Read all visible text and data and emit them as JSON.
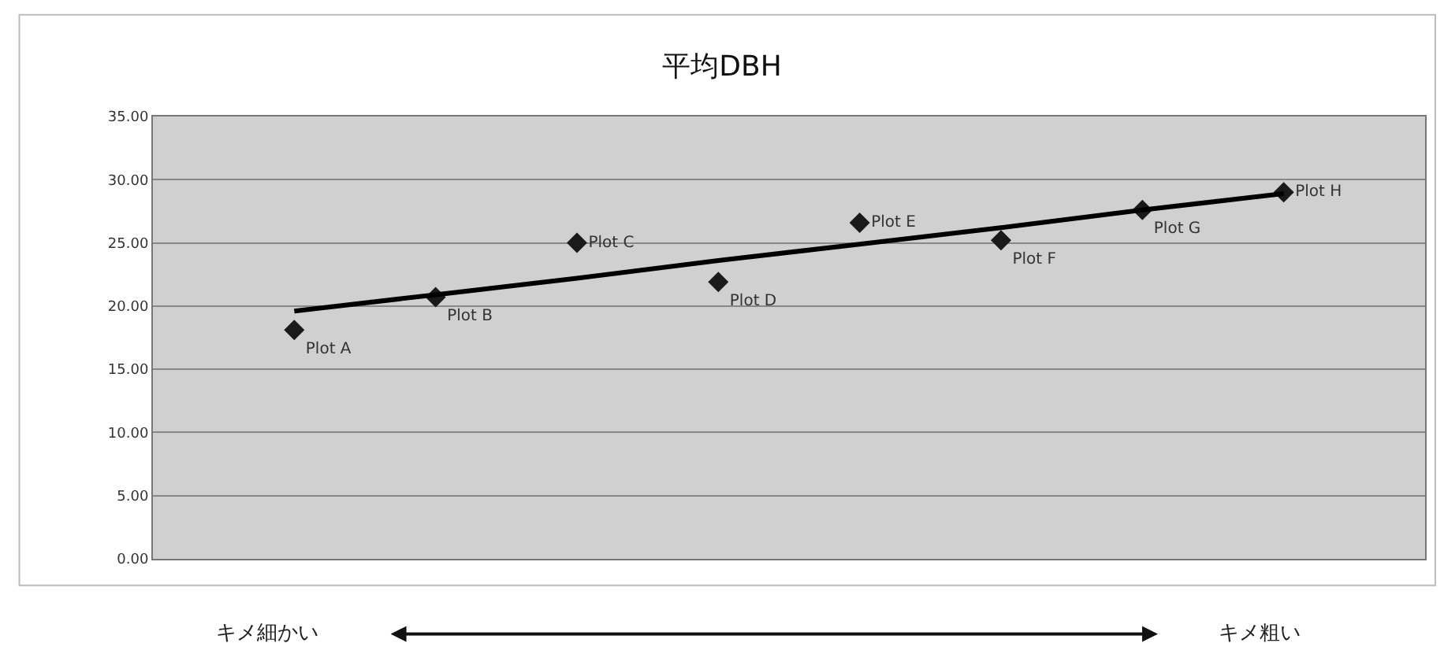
{
  "chart_data": {
    "type": "scatter",
    "title": "平均DBH",
    "categories": [
      null,
      null,
      null,
      null,
      null,
      null,
      null,
      null
    ],
    "series": [
      {
        "color": "#1a1a1a",
        "marker": "diamond",
        "values": [
          18.1,
          20.7,
          25.0,
          21.9,
          26.6,
          25.2,
          27.6,
          29.0
        ],
        "value_labels": [
          "Plot A",
          "Plot B",
          "Plot C",
          "Plot D",
          "Plot E",
          "Plot F",
          "Plot G",
          "Plot H"
        ]
      },
      {
        "type": "line",
        "color": "#000000",
        "marker": "none",
        "line_style": "solid",
        "values": [
          19.6,
          20.9,
          22.2,
          23.6,
          24.9,
          26.2,
          27.6,
          28.9
        ]
      }
    ],
    "ylim": [
      0,
      35
    ],
    "yticks": [
      {
        "value": 0,
        "label": "0.00"
      },
      {
        "value": 5,
        "label": "5.00"
      },
      {
        "value": 10,
        "label": "10.00"
      },
      {
        "value": 15,
        "label": "15.00"
      },
      {
        "value": 20,
        "label": "20.00"
      },
      {
        "value": 25,
        "label": "25.00"
      },
      {
        "value": 30,
        "label": "30.00"
      },
      {
        "value": 35,
        "label": "35.00"
      }
    ],
    "grid": "y",
    "legend": false,
    "tick_labels": "y",
    "annotations": [
      "キメ細かい",
      "キメ粗い"
    ]
  }
}
